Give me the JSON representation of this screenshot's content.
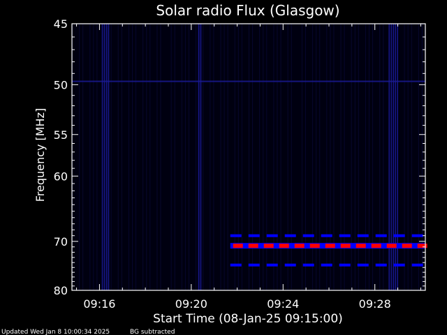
{
  "chart_data": {
    "type": "heatmap",
    "title": "Solar radio Flux (Glasgow)",
    "xlabel": "Start Time (08-Jan-25 09:15:00)",
    "ylabel": "Frequency [MHz]",
    "x_ticks": [
      "09:16",
      "09:20",
      "09:24",
      "09:28"
    ],
    "x_tick_minutes": [
      16,
      20,
      24,
      28
    ],
    "xlim_minutes": [
      14.8,
      30.2
    ],
    "y_ticks": [
      45,
      50,
      55,
      60,
      70,
      80
    ],
    "ylim": [
      45,
      80
    ],
    "y_scale": "reciprocal",
    "grid": false,
    "features": [
      {
        "name": "vertical-streak",
        "t_min": 16.1,
        "t_max": 16.4,
        "f_min": 45,
        "f_max": 80,
        "intensity": "low"
      },
      {
        "name": "vertical-streak",
        "t_min": 20.3,
        "t_max": 20.4,
        "f_min": 45,
        "f_max": 80,
        "intensity": "low"
      },
      {
        "name": "vertical-streak",
        "t_min": 28.6,
        "t_max": 29.0,
        "f_min": 45,
        "f_max": 80,
        "intensity": "low"
      },
      {
        "name": "horizontal-band",
        "t_min": 14.8,
        "t_max": 30.2,
        "freq": 49.7,
        "intensity": "low"
      },
      {
        "name": "horizontal-band",
        "t_min": 21.7,
        "t_max": 30.2,
        "freq": 69.0,
        "intensity": "medium",
        "dashed": true
      },
      {
        "name": "horizontal-band",
        "t_min": 21.7,
        "t_max": 30.2,
        "freq": 70.8,
        "intensity": "high"
      },
      {
        "name": "horizontal-band",
        "t_min": 21.7,
        "t_max": 29.8,
        "freq": 74.5,
        "intensity": "medium",
        "dashed": true
      }
    ],
    "colors": {
      "background": "#000010",
      "low": "#1a1a9a",
      "medium": "#0000ff",
      "high": "#ff0000",
      "axis": "#ffffff"
    }
  },
  "footer": {
    "updated": "Updated Wed Jan  8 10:00:34 2025",
    "bg_note": "BG subtracted"
  }
}
